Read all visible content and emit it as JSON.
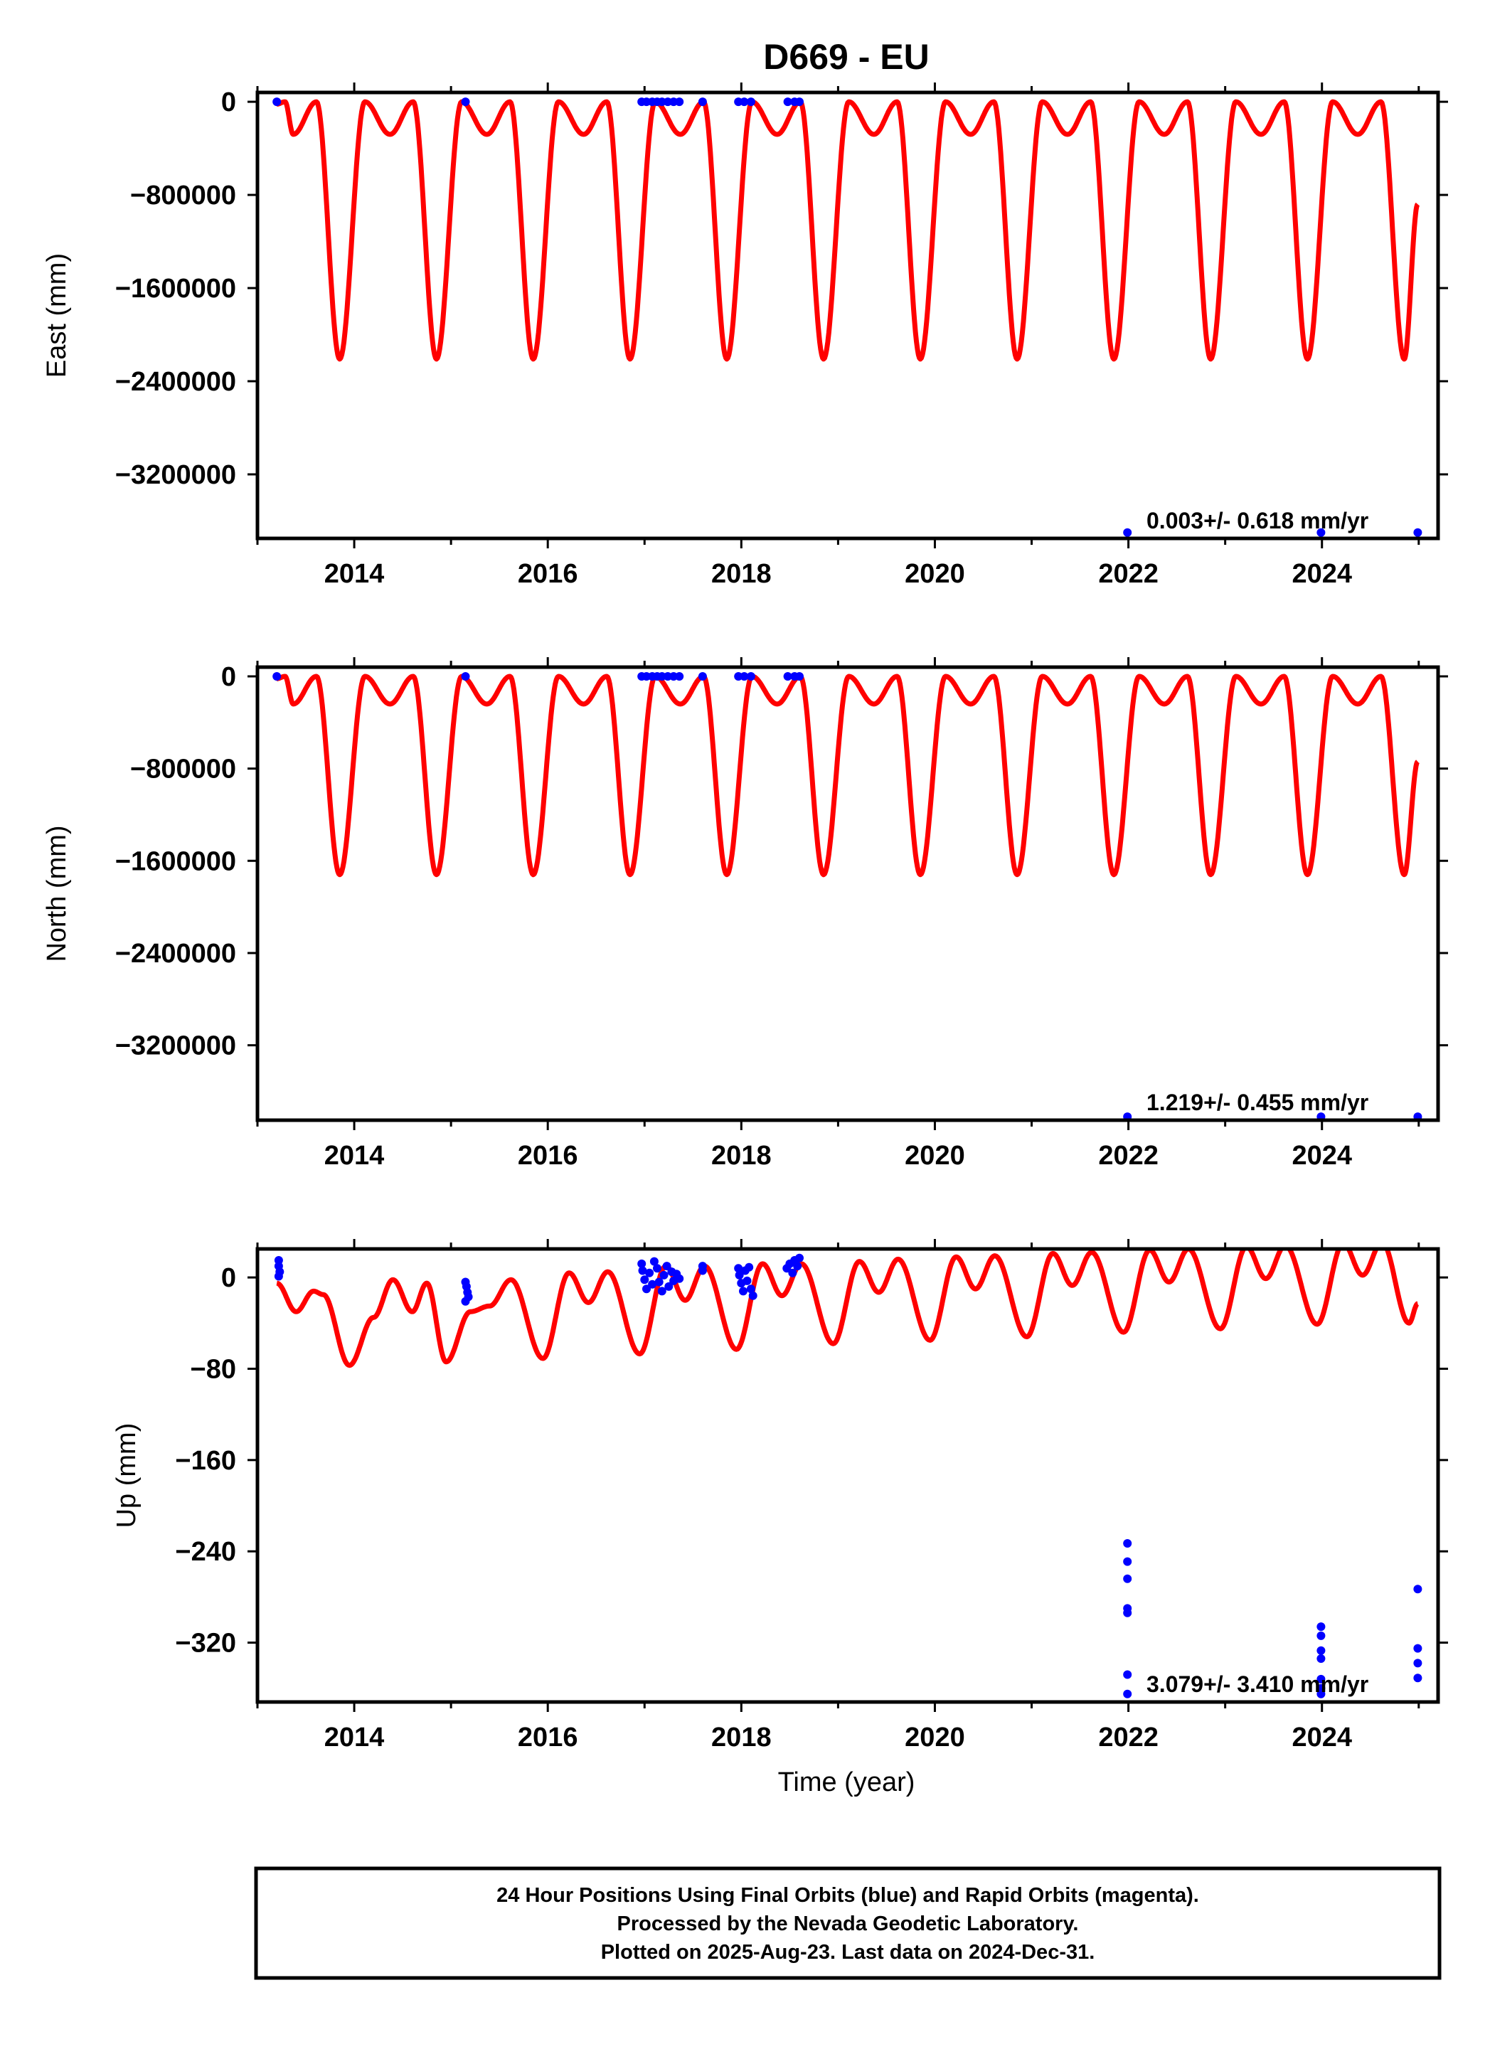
{
  "colors": {
    "model_line": "#ff0000",
    "final_orbits": "#0000ff",
    "frame": "#000000"
  },
  "chart_data": [
    {
      "type": "line+scatter",
      "title": "D669 - EU",
      "ylabel": "East (mm)",
      "xlabel": "",
      "xlim": [
        2013.0,
        2025.2
      ],
      "ylim": [
        -3750000,
        80000
      ],
      "xticks": [
        "2014",
        "2016",
        "2018",
        "2020",
        "2022",
        "2024"
      ],
      "yticks": [
        {
          "value": 0,
          "label": "0"
        },
        {
          "value": -800000,
          "label": "−800000"
        },
        {
          "value": -1600000,
          "label": "−1600000"
        },
        {
          "value": -2400000,
          "label": "−2400000"
        },
        {
          "value": -3200000,
          "label": "−3200000"
        }
      ],
      "rate_label": "0.003+/- 0.618 mm/yr",
      "model": {
        "x_start": 2013.2,
        "x_end": 2024.99,
        "period_years": 1.0,
        "minima": [
          {
            "x": 2013.37,
            "y": -280000
          },
          {
            "x": 2013.85,
            "y": -2210000
          },
          {
            "x": 2014.37,
            "y": -280000
          },
          {
            "x": 2014.85,
            "y": -2210000
          },
          {
            "x": 2015.37,
            "y": -280000
          },
          {
            "x": 2015.85,
            "y": -2210000
          },
          {
            "x": 2016.37,
            "y": -280000
          },
          {
            "x": 2016.85,
            "y": -2210000
          },
          {
            "x": 2017.37,
            "y": -280000
          },
          {
            "x": 2017.85,
            "y": -2210000
          },
          {
            "x": 2018.37,
            "y": -280000
          },
          {
            "x": 2018.85,
            "y": -2210000
          },
          {
            "x": 2019.37,
            "y": -280000
          },
          {
            "x": 2019.85,
            "y": -2210000
          },
          {
            "x": 2020.37,
            "y": -280000
          },
          {
            "x": 2020.85,
            "y": -2210000
          },
          {
            "x": 2021.37,
            "y": -280000
          },
          {
            "x": 2021.85,
            "y": -2210000
          },
          {
            "x": 2022.37,
            "y": -280000
          },
          {
            "x": 2022.85,
            "y": -2210000
          },
          {
            "x": 2023.37,
            "y": -280000
          },
          {
            "x": 2023.85,
            "y": -2210000
          },
          {
            "x": 2024.37,
            "y": -280000
          },
          {
            "x": 2024.85,
            "y": -2210000
          }
        ],
        "end_y": -880000
      },
      "points": [
        {
          "x": 2013.2,
          "y": 0
        },
        {
          "x": 2015.15,
          "y": 0
        },
        {
          "x": 2016.97,
          "y": 0
        },
        {
          "x": 2017.02,
          "y": 0
        },
        {
          "x": 2017.08,
          "y": 0
        },
        {
          "x": 2017.13,
          "y": 0
        },
        {
          "x": 2017.18,
          "y": 0
        },
        {
          "x": 2017.24,
          "y": 0
        },
        {
          "x": 2017.3,
          "y": 0
        },
        {
          "x": 2017.36,
          "y": 0
        },
        {
          "x": 2017.6,
          "y": 0
        },
        {
          "x": 2017.97,
          "y": 0
        },
        {
          "x": 2018.03,
          "y": 0
        },
        {
          "x": 2018.1,
          "y": 0
        },
        {
          "x": 2018.48,
          "y": 0
        },
        {
          "x": 2018.55,
          "y": 0
        },
        {
          "x": 2018.6,
          "y": 0
        },
        {
          "x": 2021.99,
          "y": -3700000
        },
        {
          "x": 2023.99,
          "y": -3700000
        },
        {
          "x": 2024.99,
          "y": -3700000
        }
      ]
    },
    {
      "type": "line+scatter",
      "title": "",
      "ylabel": "North (mm)",
      "xlabel": "",
      "xlim": [
        2013.0,
        2025.2
      ],
      "ylim": [
        -3850000,
        80000
      ],
      "xticks": [
        "2014",
        "2016",
        "2018",
        "2020",
        "2022",
        "2024"
      ],
      "yticks": [
        {
          "value": 0,
          "label": "0"
        },
        {
          "value": -800000,
          "label": "−800000"
        },
        {
          "value": -1600000,
          "label": "−1600000"
        },
        {
          "value": -2400000,
          "label": "−2400000"
        },
        {
          "value": -3200000,
          "label": "−3200000"
        }
      ],
      "rate_label": "1.219+/- 0.455 mm/yr",
      "model": {
        "x_start": 2013.2,
        "x_end": 2024.99,
        "period_years": 1.0,
        "minima": [
          {
            "x": 2013.37,
            "y": -240000
          },
          {
            "x": 2013.85,
            "y": -1720000
          },
          {
            "x": 2014.37,
            "y": -240000
          },
          {
            "x": 2014.85,
            "y": -1720000
          },
          {
            "x": 2015.37,
            "y": -240000
          },
          {
            "x": 2015.85,
            "y": -1720000
          },
          {
            "x": 2016.37,
            "y": -240000
          },
          {
            "x": 2016.85,
            "y": -1720000
          },
          {
            "x": 2017.37,
            "y": -240000
          },
          {
            "x": 2017.85,
            "y": -1720000
          },
          {
            "x": 2018.37,
            "y": -240000
          },
          {
            "x": 2018.85,
            "y": -1720000
          },
          {
            "x": 2019.37,
            "y": -240000
          },
          {
            "x": 2019.85,
            "y": -1720000
          },
          {
            "x": 2020.37,
            "y": -240000
          },
          {
            "x": 2020.85,
            "y": -1720000
          },
          {
            "x": 2021.37,
            "y": -240000
          },
          {
            "x": 2021.85,
            "y": -1720000
          },
          {
            "x": 2022.37,
            "y": -240000
          },
          {
            "x": 2022.85,
            "y": -1720000
          },
          {
            "x": 2023.37,
            "y": -240000
          },
          {
            "x": 2023.85,
            "y": -1720000
          },
          {
            "x": 2024.37,
            "y": -240000
          },
          {
            "x": 2024.85,
            "y": -1720000
          }
        ],
        "end_y": -740000
      },
      "points": [
        {
          "x": 2013.2,
          "y": 0
        },
        {
          "x": 2015.15,
          "y": 0
        },
        {
          "x": 2016.97,
          "y": 0
        },
        {
          "x": 2017.02,
          "y": 0
        },
        {
          "x": 2017.08,
          "y": 0
        },
        {
          "x": 2017.13,
          "y": 0
        },
        {
          "x": 2017.18,
          "y": 0
        },
        {
          "x": 2017.24,
          "y": 0
        },
        {
          "x": 2017.3,
          "y": 0
        },
        {
          "x": 2017.36,
          "y": 0
        },
        {
          "x": 2017.6,
          "y": 0
        },
        {
          "x": 2017.97,
          "y": 0
        },
        {
          "x": 2018.03,
          "y": 0
        },
        {
          "x": 2018.1,
          "y": 0
        },
        {
          "x": 2018.48,
          "y": 0
        },
        {
          "x": 2018.55,
          "y": 0
        },
        {
          "x": 2018.6,
          "y": 0
        },
        {
          "x": 2021.99,
          "y": -3820000
        },
        {
          "x": 2023.99,
          "y": -3820000
        },
        {
          "x": 2024.99,
          "y": -3820000
        }
      ]
    },
    {
      "type": "line+scatter",
      "title": "",
      "ylabel": "Up (mm)",
      "xlabel": "Time (year)",
      "xlim": [
        2013.0,
        2025.2
      ],
      "ylim": [
        -372,
        25
      ],
      "xticks": [
        "2014",
        "2016",
        "2018",
        "2020",
        "2022",
        "2024"
      ],
      "yticks": [
        {
          "value": 0,
          "label": "0"
        },
        {
          "value": -80,
          "label": "−80"
        },
        {
          "value": -160,
          "label": "−160"
        },
        {
          "value": -240,
          "label": "−240"
        },
        {
          "value": -320,
          "label": "−320"
        }
      ],
      "rate_label": "3.079+/- 3.410 mm/yr",
      "model": {
        "x_start": 2013.2,
        "x_end": 2024.99,
        "trend_slope_mm_per_yr": 3.079,
        "curve": [
          {
            "x": 2013.2,
            "y": -5
          },
          {
            "x": 2013.4,
            "y": -30
          },
          {
            "x": 2013.58,
            "y": -12
          },
          {
            "x": 2013.68,
            "y": -15
          },
          {
            "x": 2013.95,
            "y": -77
          },
          {
            "x": 2014.2,
            "y": -35
          },
          {
            "x": 2014.4,
            "y": -2
          },
          {
            "x": 2014.6,
            "y": -30
          },
          {
            "x": 2014.75,
            "y": -5
          },
          {
            "x": 2014.95,
            "y": -74
          },
          {
            "x": 2015.2,
            "y": -30
          },
          {
            "x": 2015.4,
            "y": -25
          },
          {
            "x": 2015.62,
            "y": -2
          },
          {
            "x": 2015.95,
            "y": -71
          },
          {
            "x": 2016.22,
            "y": 4
          },
          {
            "x": 2016.42,
            "y": -22
          },
          {
            "x": 2016.62,
            "y": 5
          },
          {
            "x": 2016.95,
            "y": -67
          },
          {
            "x": 2017.22,
            "y": 10
          },
          {
            "x": 2017.42,
            "y": -20
          },
          {
            "x": 2017.62,
            "y": 10
          },
          {
            "x": 2017.95,
            "y": -63
          },
          {
            "x": 2018.22,
            "y": 12
          },
          {
            "x": 2018.42,
            "y": -16
          },
          {
            "x": 2018.62,
            "y": 12
          },
          {
            "x": 2018.95,
            "y": -58
          },
          {
            "x": 2019.22,
            "y": 14
          },
          {
            "x": 2019.42,
            "y": -13
          },
          {
            "x": 2019.62,
            "y": 16
          },
          {
            "x": 2019.95,
            "y": -55
          },
          {
            "x": 2020.22,
            "y": 18
          },
          {
            "x": 2020.42,
            "y": -10
          },
          {
            "x": 2020.62,
            "y": 19
          },
          {
            "x": 2020.95,
            "y": -52
          },
          {
            "x": 2021.22,
            "y": 21
          },
          {
            "x": 2021.42,
            "y": -7
          },
          {
            "x": 2021.62,
            "y": 22
          },
          {
            "x": 2021.95,
            "y": -48
          },
          {
            "x": 2022.22,
            "y": 24
          },
          {
            "x": 2022.42,
            "y": -4
          },
          {
            "x": 2022.62,
            "y": 25
          },
          {
            "x": 2022.95,
            "y": -45
          },
          {
            "x": 2023.22,
            "y": 27
          },
          {
            "x": 2023.42,
            "y": -1
          },
          {
            "x": 2023.62,
            "y": 28
          },
          {
            "x": 2023.95,
            "y": -41
          },
          {
            "x": 2024.22,
            "y": 30
          },
          {
            "x": 2024.42,
            "y": 2
          },
          {
            "x": 2024.62,
            "y": 31
          },
          {
            "x": 2024.9,
            "y": -40
          },
          {
            "x": 2024.99,
            "y": -23
          }
        ]
      },
      "points": [
        {
          "x": 2013.22,
          "y": 15
        },
        {
          "x": 2013.22,
          "y": 10
        },
        {
          "x": 2013.23,
          "y": 5
        },
        {
          "x": 2013.22,
          "y": 1
        },
        {
          "x": 2015.15,
          "y": -4
        },
        {
          "x": 2015.16,
          "y": -8
        },
        {
          "x": 2015.17,
          "y": -13
        },
        {
          "x": 2015.18,
          "y": -17
        },
        {
          "x": 2015.15,
          "y": -21
        },
        {
          "x": 2016.97,
          "y": 12
        },
        {
          "x": 2016.98,
          "y": 6
        },
        {
          "x": 2017.0,
          "y": -2
        },
        {
          "x": 2017.02,
          "y": -10
        },
        {
          "x": 2017.05,
          "y": 4
        },
        {
          "x": 2017.08,
          "y": -6
        },
        {
          "x": 2017.1,
          "y": 14
        },
        {
          "x": 2017.13,
          "y": 8
        },
        {
          "x": 2017.15,
          "y": -4
        },
        {
          "x": 2017.18,
          "y": -12
        },
        {
          "x": 2017.2,
          "y": 2
        },
        {
          "x": 2017.23,
          "y": 10
        },
        {
          "x": 2017.25,
          "y": -8
        },
        {
          "x": 2017.28,
          "y": 5
        },
        {
          "x": 2017.3,
          "y": -3
        },
        {
          "x": 2017.33,
          "y": 3
        },
        {
          "x": 2017.36,
          "y": -1
        },
        {
          "x": 2017.6,
          "y": 10
        },
        {
          "x": 2017.6,
          "y": 6
        },
        {
          "x": 2017.97,
          "y": 8
        },
        {
          "x": 2017.98,
          "y": 2
        },
        {
          "x": 2018.0,
          "y": -5
        },
        {
          "x": 2018.02,
          "y": -12
        },
        {
          "x": 2018.04,
          "y": 6
        },
        {
          "x": 2018.06,
          "y": -3
        },
        {
          "x": 2018.08,
          "y": 9
        },
        {
          "x": 2018.1,
          "y": -10
        },
        {
          "x": 2018.12,
          "y": -16
        },
        {
          "x": 2018.47,
          "y": 8
        },
        {
          "x": 2018.5,
          "y": 12
        },
        {
          "x": 2018.53,
          "y": 4
        },
        {
          "x": 2018.55,
          "y": 15
        },
        {
          "x": 2018.58,
          "y": 10
        },
        {
          "x": 2018.6,
          "y": 17
        },
        {
          "x": 2021.99,
          "y": -233
        },
        {
          "x": 2021.99,
          "y": -249
        },
        {
          "x": 2021.99,
          "y": -264
        },
        {
          "x": 2021.99,
          "y": -290
        },
        {
          "x": 2021.99,
          "y": -294
        },
        {
          "x": 2021.99,
          "y": -348
        },
        {
          "x": 2021.99,
          "y": -365
        },
        {
          "x": 2023.99,
          "y": -306
        },
        {
          "x": 2023.99,
          "y": -314
        },
        {
          "x": 2023.99,
          "y": -327
        },
        {
          "x": 2023.99,
          "y": -334
        },
        {
          "x": 2023.99,
          "y": -352
        },
        {
          "x": 2023.99,
          "y": -360
        },
        {
          "x": 2023.99,
          "y": -365
        },
        {
          "x": 2024.99,
          "y": -273
        },
        {
          "x": 2024.99,
          "y": -325
        },
        {
          "x": 2024.99,
          "y": -338
        },
        {
          "x": 2024.99,
          "y": -351
        }
      ]
    }
  ],
  "footer": {
    "line1": "24 Hour Positions Using Final Orbits (blue) and Rapid Orbits (magenta).",
    "line2": "Processed by the Nevada Geodetic Laboratory.",
    "line3": "Plotted on 2025-Aug-23. Last data on 2024-Dec-31."
  }
}
